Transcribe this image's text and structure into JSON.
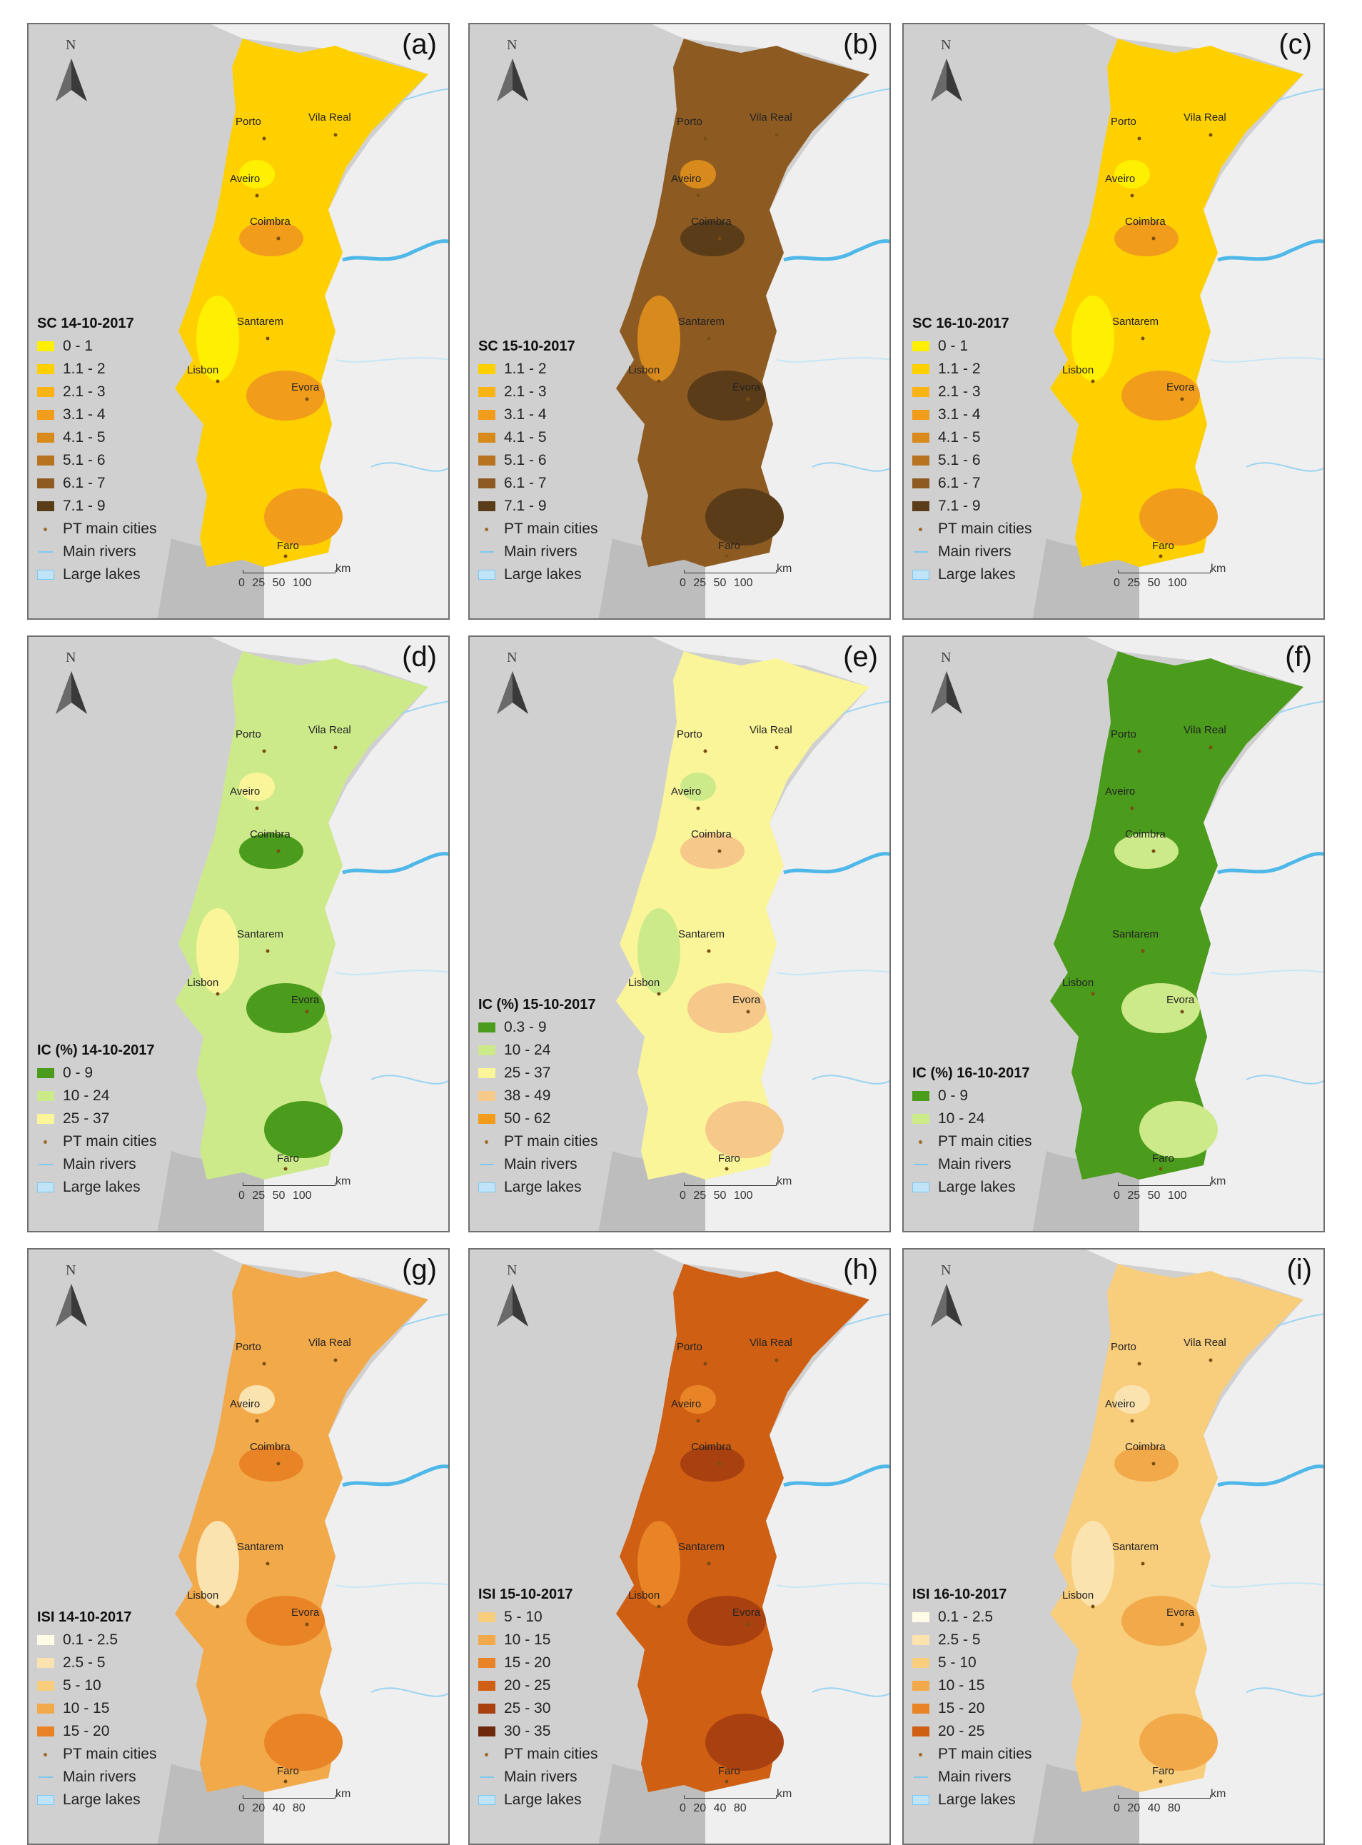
{
  "common": {
    "north_label": "N",
    "legend_points": "PT main cities",
    "legend_rivers": "Main rivers",
    "legend_lakes": "Large lakes",
    "scale_unit": "km"
  },
  "panels": [
    {
      "letter": "(a)",
      "title": "SC 14-10-2017",
      "classes": [
        {
          "label": "0 - 1",
          "color": "#ffef00"
        },
        {
          "label": "1.1 - 2",
          "color": "#ffd000"
        },
        {
          "label": "2.1 - 3",
          "color": "#fbb315"
        },
        {
          "label": "3.1 - 4",
          "color": "#f29c1b"
        },
        {
          "label": "4.1 - 5",
          "color": "#d88a1c"
        },
        {
          "label": "5.1 - 6",
          "color": "#b77320"
        },
        {
          "label": "6.1 - 7",
          "color": "#8d5b22"
        },
        {
          "label": "7.1 - 9",
          "color": "#5b3c18"
        }
      ],
      "base": "#ffd000",
      "accent": "#f29c1b",
      "accent2": "#ffef00",
      "scale": "0 25 50 100"
    },
    {
      "letter": "(b)",
      "title": "SC 15-10-2017",
      "classes": [
        {
          "label": "1.1 - 2",
          "color": "#ffd000"
        },
        {
          "label": "2.1 - 3",
          "color": "#fbb315"
        },
        {
          "label": "3.1 - 4",
          "color": "#f29c1b"
        },
        {
          "label": "4.1 - 5",
          "color": "#d88a1c"
        },
        {
          "label": "5.1 - 6",
          "color": "#b77320"
        },
        {
          "label": "6.1 - 7",
          "color": "#8d5b22"
        },
        {
          "label": "7.1 - 9",
          "color": "#5b3c18"
        }
      ],
      "base": "#8d5b22",
      "accent": "#5b3c18",
      "accent2": "#d88a1c",
      "scale": "0 25 50 100"
    },
    {
      "letter": "(c)",
      "title": "SC 16-10-2017",
      "classes": [
        {
          "label": "0 - 1",
          "color": "#ffef00"
        },
        {
          "label": "1.1 - 2",
          "color": "#ffd000"
        },
        {
          "label": "2.1 - 3",
          "color": "#fbb315"
        },
        {
          "label": "3.1 - 4",
          "color": "#f29c1b"
        },
        {
          "label": "4.1 - 5",
          "color": "#d88a1c"
        },
        {
          "label": "5.1 - 6",
          "color": "#b77320"
        },
        {
          "label": "6.1 - 7",
          "color": "#8d5b22"
        },
        {
          "label": "7.1 - 9",
          "color": "#5b3c18"
        }
      ],
      "base": "#ffd000",
      "accent": "#f29c1b",
      "accent2": "#ffef00",
      "scale": "0 25 50 100"
    },
    {
      "letter": "(d)",
      "title": "IC (%) 14-10-2017",
      "classes": [
        {
          "label": "0 - 9",
          "color": "#4b9b1c"
        },
        {
          "label": "10 - 24",
          "color": "#cdea8a"
        },
        {
          "label": "25 - 37",
          "color": "#fbf59a"
        }
      ],
      "base": "#cdea8a",
      "accent": "#4b9b1c",
      "accent2": "#fbf59a",
      "scale": "0 25 50 100"
    },
    {
      "letter": "(e)",
      "title": "IC (%) 15-10-2017",
      "classes": [
        {
          "label": "0.3 - 9",
          "color": "#4b9b1c"
        },
        {
          "label": "10 - 24",
          "color": "#cdea8a"
        },
        {
          "label": "25 - 37",
          "color": "#fbf59a"
        },
        {
          "label": "38 - 49",
          "color": "#f6c88a"
        },
        {
          "label": "50 - 62",
          "color": "#f29c1b"
        }
      ],
      "base": "#fbf59a",
      "accent": "#f6c88a",
      "accent2": "#cdea8a",
      "scale": "0 25 50 100"
    },
    {
      "letter": "(f)",
      "title": "IC (%) 16-10-2017",
      "classes": [
        {
          "label": "0 - 9",
          "color": "#4b9b1c"
        },
        {
          "label": "10 - 24",
          "color": "#cdea8a"
        }
      ],
      "base": "#4b9b1c",
      "accent": "#cdea8a",
      "accent2": "#4b9b1c",
      "scale": "0 25 50 100"
    },
    {
      "letter": "(g)",
      "title": "ISI 14-10-2017",
      "classes": [
        {
          "label": "0.1 - 2.5",
          "color": "#fffbe6"
        },
        {
          "label": "2.5 - 5",
          "color": "#fbe3b0"
        },
        {
          "label": "5 - 10",
          "color": "#f8cd7c"
        },
        {
          "label": "10 - 15",
          "color": "#f2a94a"
        },
        {
          "label": "15 - 20",
          "color": "#e98426"
        }
      ],
      "base": "#f2a94a",
      "accent": "#e98426",
      "accent2": "#fbe3b0",
      "scale": "0 20 40 80"
    },
    {
      "letter": "(h)",
      "title": "ISI 15-10-2017",
      "classes": [
        {
          "label": "5 - 10",
          "color": "#f8cd7c"
        },
        {
          "label": "10 - 15",
          "color": "#f2a94a"
        },
        {
          "label": "15 - 20",
          "color": "#e98426"
        },
        {
          "label": "20 - 25",
          "color": "#cf5f13"
        },
        {
          "label": "25 - 30",
          "color": "#a9400f"
        },
        {
          "label": "30 - 35",
          "color": "#6d280c"
        }
      ],
      "base": "#cf5f13",
      "accent": "#a9400f",
      "accent2": "#e98426",
      "scale": "0 20 40 80"
    },
    {
      "letter": "(i)",
      "title": "ISI 16-10-2017",
      "classes": [
        {
          "label": "0.1 - 2.5",
          "color": "#fffbe6"
        },
        {
          "label": "2.5 - 5",
          "color": "#fbe3b0"
        },
        {
          "label": "5 - 10",
          "color": "#f8cd7c"
        },
        {
          "label": "10 - 15",
          "color": "#f2a94a"
        },
        {
          "label": "15 - 20",
          "color": "#e98426"
        },
        {
          "label": "20 - 25",
          "color": "#cf5f13"
        }
      ],
      "base": "#f8cd7c",
      "accent": "#f2a94a",
      "accent2": "#fbe3b0",
      "scale": "0 20 40 80"
    }
  ],
  "cities": [
    "Porto",
    "Vila Real",
    "Aveiro",
    "Coimbra",
    "Santarem",
    "Lisbon",
    "Evora",
    "Faro"
  ]
}
